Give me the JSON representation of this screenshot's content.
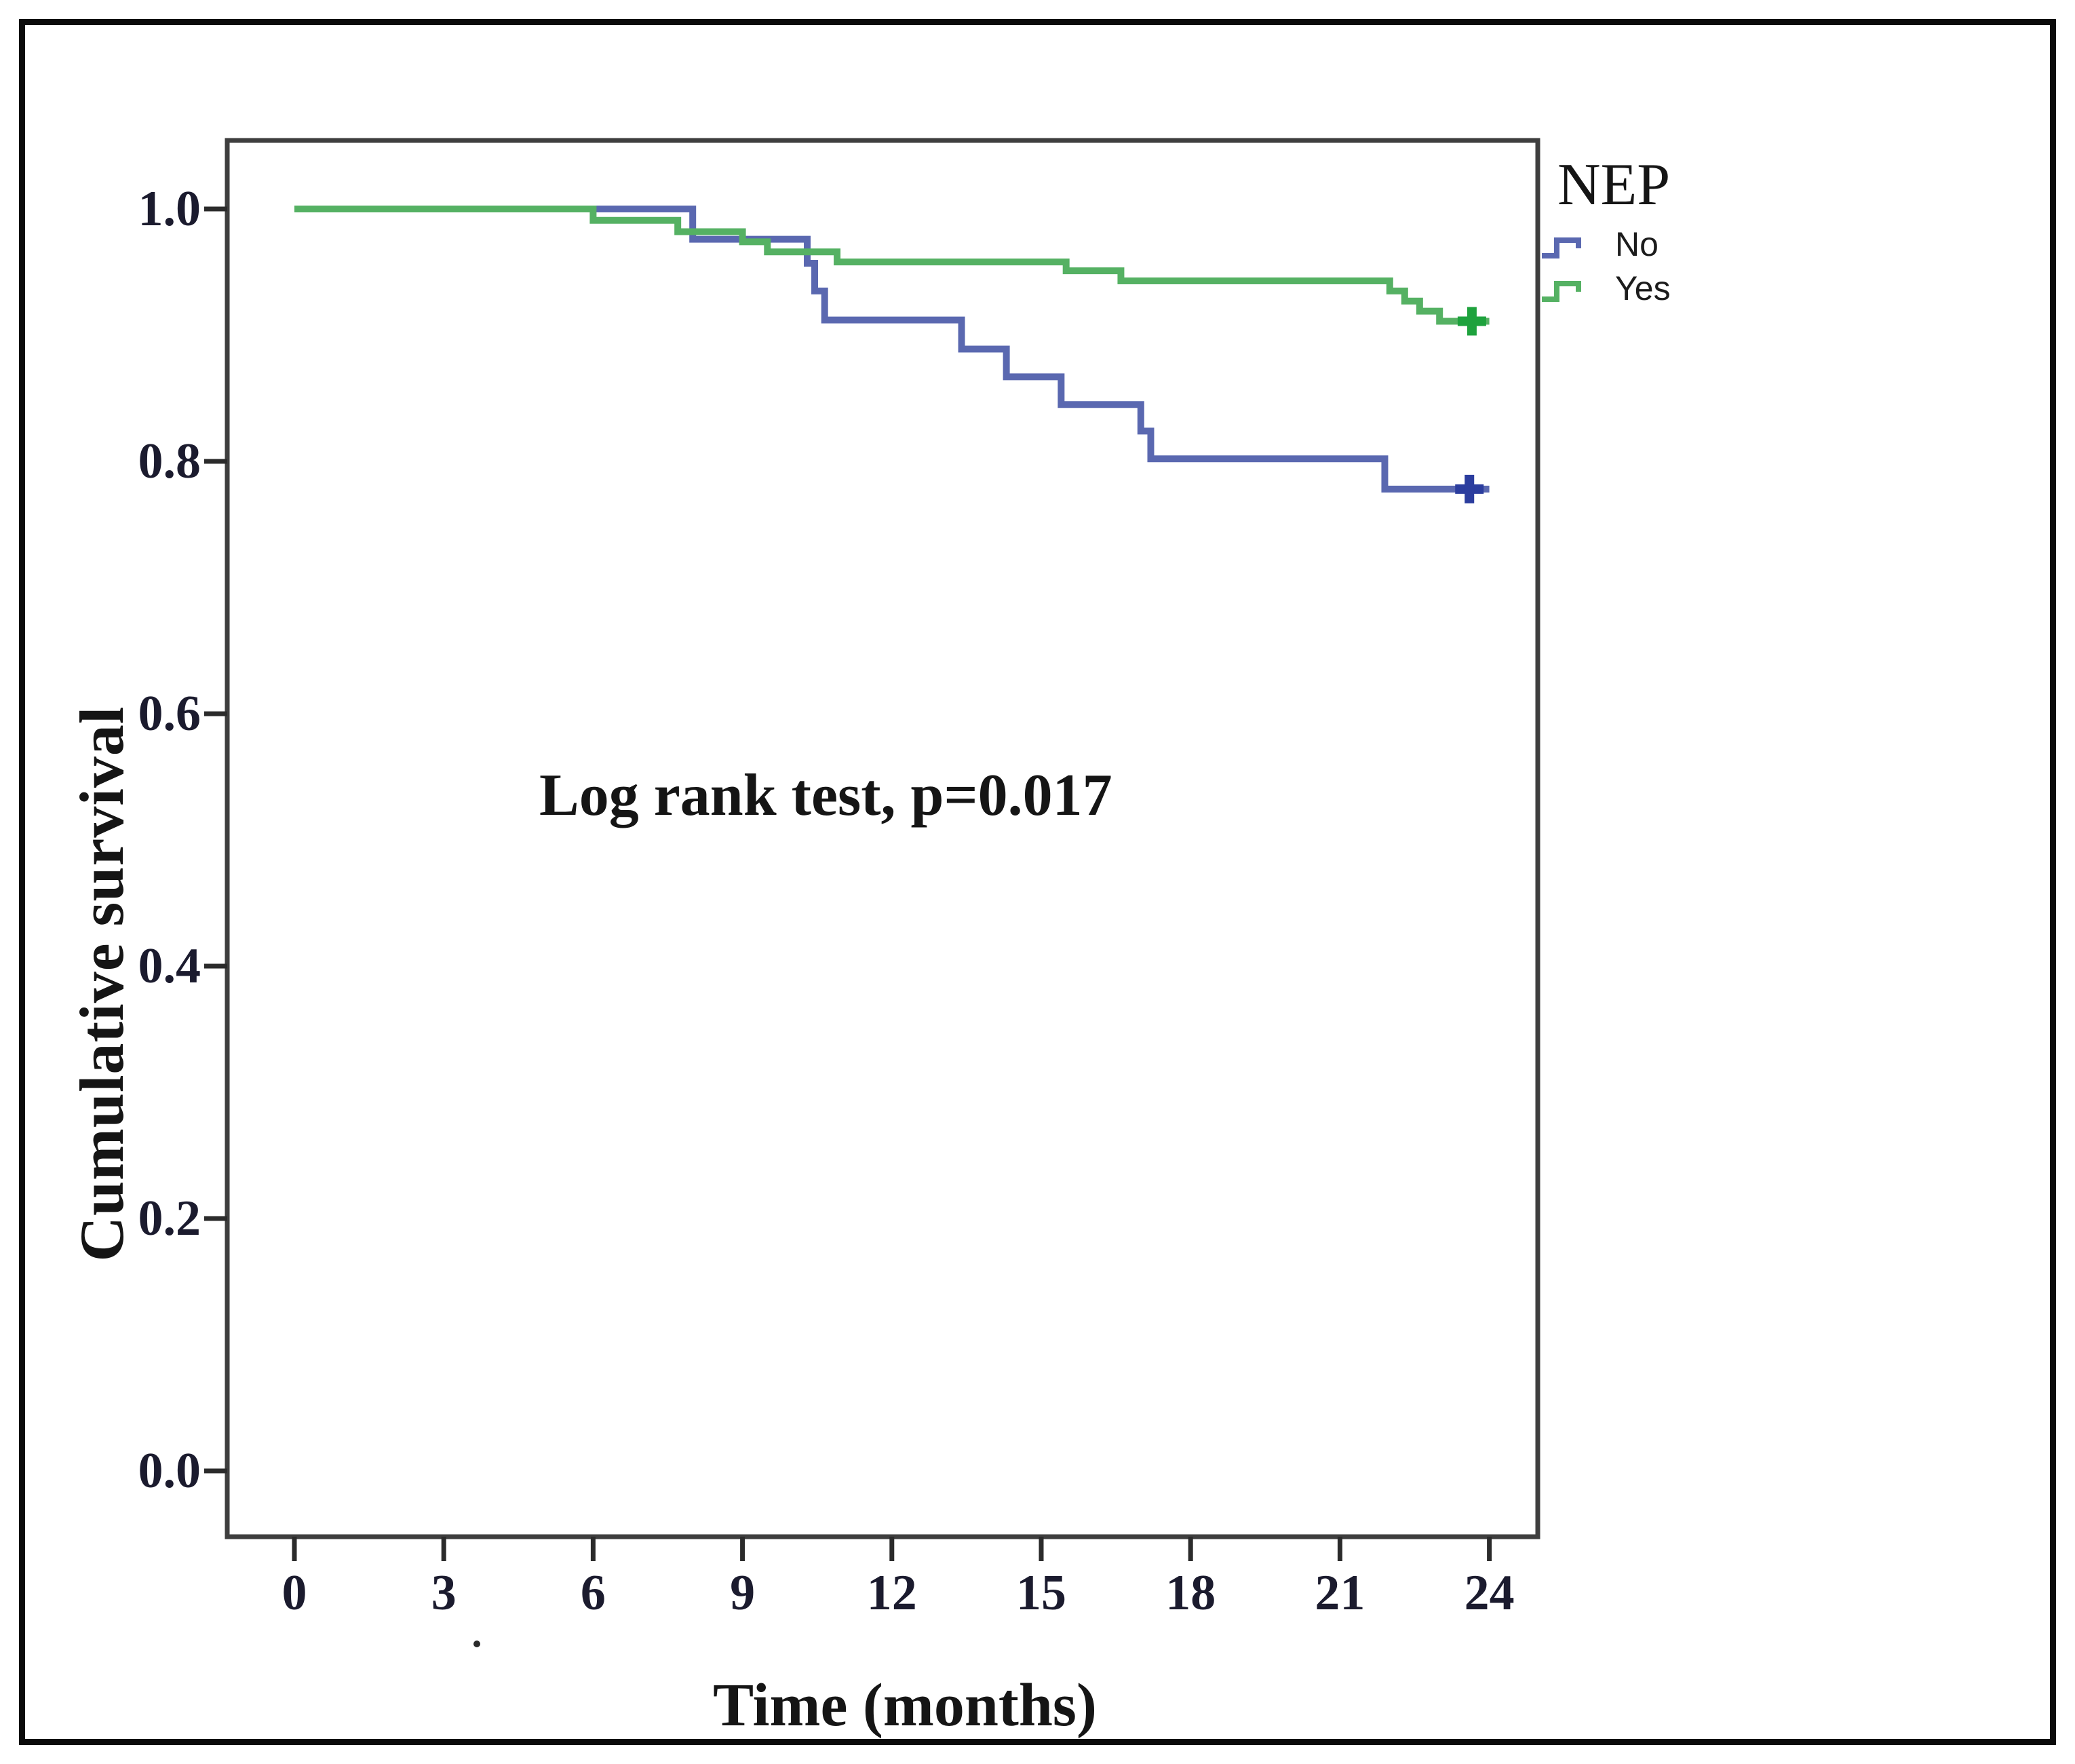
{
  "figure": {
    "y_axis_title": "Cumulative survival",
    "x_axis_title": "Time (months)",
    "annotation_text": "Log rank test, p=0.017",
    "legend_title": "NEP"
  },
  "colors": {
    "no_line": "#5a68b0",
    "no_censor": "#2b3d9e",
    "yes_line": "#55b163",
    "yes_censor": "#1ea23d",
    "axis_border": "#3e3e3e",
    "tick": "#2b2b2b",
    "outer_frame": "#0b0b0b",
    "text": "#151515"
  },
  "chart_data": {
    "type": "line",
    "subtype": "kaplan_meier_step",
    "title": "",
    "xlabel": "Time (months)",
    "ylabel": "Cumulative survival",
    "xlim": [
      -1.4,
      25.0
    ],
    "ylim": [
      -0.052,
      1.055
    ],
    "grid": false,
    "x_ticks": [
      0,
      3,
      6,
      9,
      12,
      15,
      18,
      21,
      24
    ],
    "y_ticks": [
      1.0,
      0.8,
      0.6,
      0.4,
      0.2,
      0.0
    ],
    "y_tick_labels": [
      "1.0",
      "0.8",
      "0.6",
      "0.4",
      "0.2",
      "0.0"
    ],
    "annotation": {
      "text": "Log rank test, p=0.017",
      "x": 4.9,
      "y": 0.53
    },
    "legend": {
      "title": "NEP",
      "position": "outside-right-top",
      "entries": [
        {
          "label": "No",
          "color": "#5a68b0"
        },
        {
          "label": "Yes",
          "color": "#55b163"
        }
      ]
    },
    "series": [
      {
        "name": "No",
        "color": "#5a68b0",
        "censor_color": "#2b3d9e",
        "step_points": [
          [
            0,
            1.0
          ],
          [
            8.0,
            0.976
          ],
          [
            10.3,
            0.957
          ],
          [
            10.45,
            0.935
          ],
          [
            10.65,
            0.912
          ],
          [
            13.4,
            0.889
          ],
          [
            14.3,
            0.867
          ],
          [
            15.4,
            0.845
          ],
          [
            17.0,
            0.824
          ],
          [
            17.2,
            0.802
          ],
          [
            21.9,
            0.778
          ]
        ],
        "end_time": 24.0,
        "final_value": 0.778,
        "censors": [
          [
            23.6,
            0.778
          ]
        ]
      },
      {
        "name": "Yes",
        "color": "#55b163",
        "censor_color": "#1ea23d",
        "step_points": [
          [
            0,
            1.0
          ],
          [
            6.0,
            0.991
          ],
          [
            7.7,
            0.982
          ],
          [
            9.0,
            0.974
          ],
          [
            9.5,
            0.966
          ],
          [
            10.9,
            0.958
          ],
          [
            15.5,
            0.951
          ],
          [
            16.6,
            0.943
          ],
          [
            22.0,
            0.935
          ],
          [
            22.3,
            0.927
          ],
          [
            22.6,
            0.919
          ],
          [
            23.0,
            0.911
          ]
        ],
        "end_time": 24.0,
        "final_value": 0.911,
        "censors": [
          [
            23.65,
            0.911
          ]
        ]
      }
    ]
  }
}
